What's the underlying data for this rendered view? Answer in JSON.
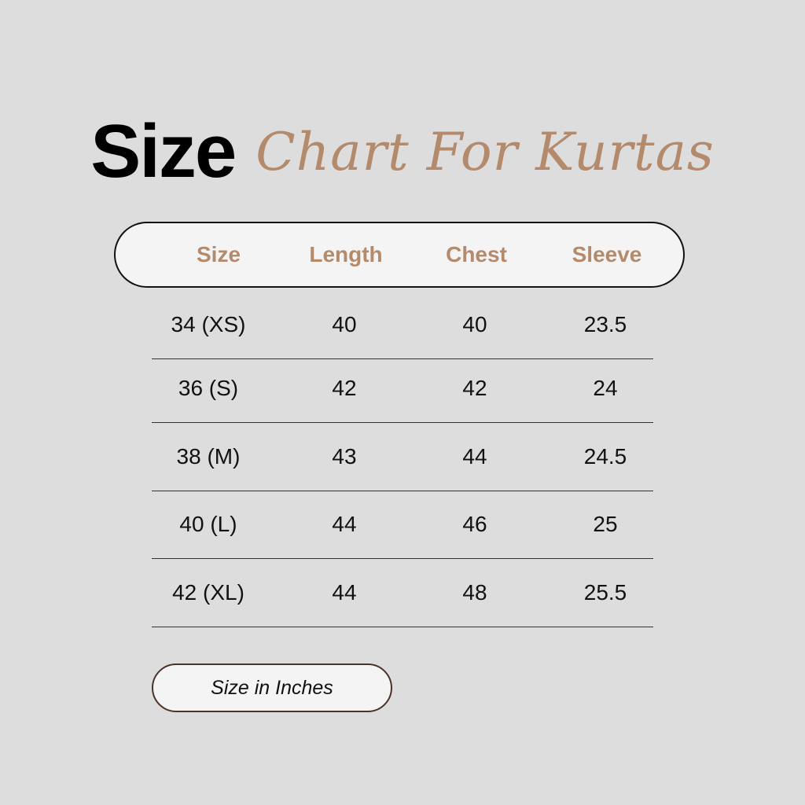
{
  "title": {
    "bold": "Size",
    "script": "Chart For Kurtas"
  },
  "table": {
    "headers": [
      "Size",
      "Length",
      "Chest",
      "Sleeve"
    ],
    "rows": [
      [
        "34 (XS)",
        "40",
        "40",
        "23.5"
      ],
      [
        "36 (S)",
        "42",
        "42",
        "24"
      ],
      [
        "38 (M)",
        "43",
        "44",
        "24.5"
      ],
      [
        "40 (L)",
        "44",
        "46",
        "25"
      ],
      [
        "42 (XL)",
        "44",
        "48",
        "25.5"
      ]
    ]
  },
  "note": "Size in Inches",
  "colors": {
    "accent": "#b48a6c",
    "background": "#dddddd"
  }
}
